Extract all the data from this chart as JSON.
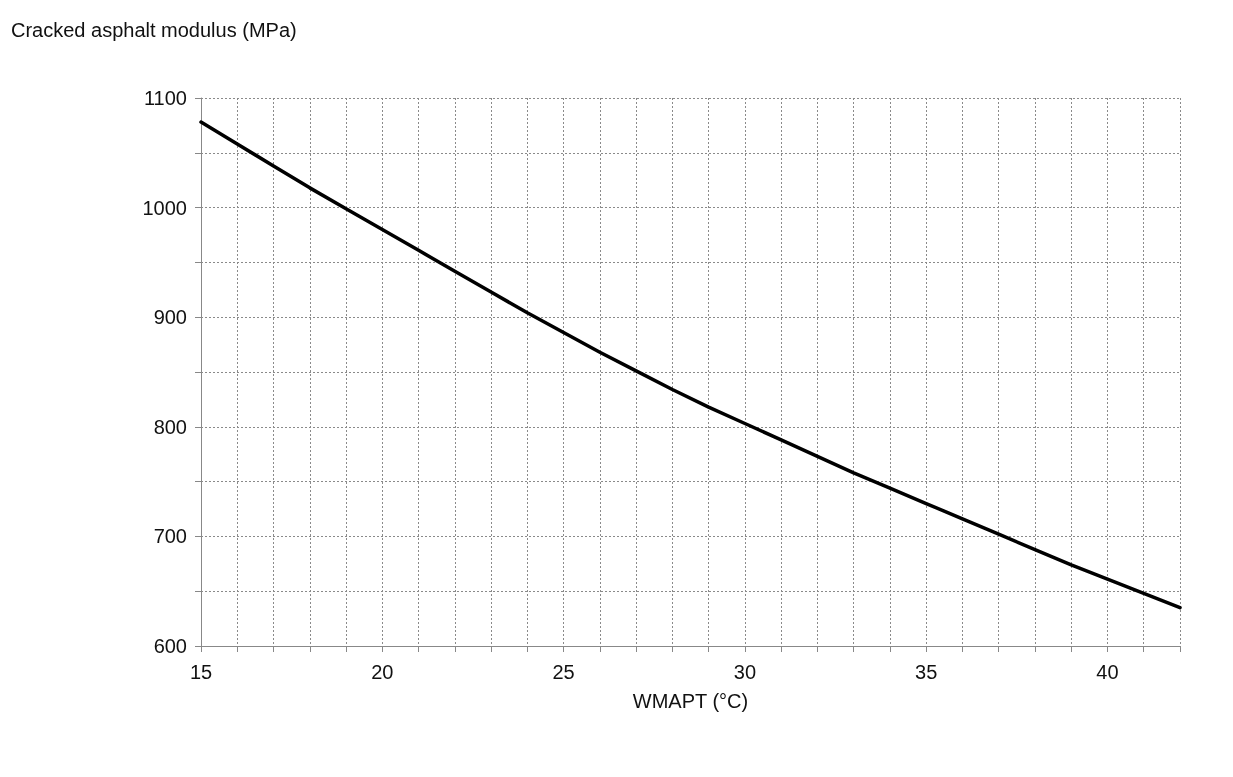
{
  "chart_data": {
    "type": "line",
    "xlabel": "WMAPT (°C)",
    "ylabel": "Cracked asphalt modulus (MPa)",
    "x": [
      15,
      16,
      17,
      18,
      19,
      20,
      21,
      22,
      23,
      24,
      25,
      26,
      27,
      28,
      29,
      30,
      31,
      32,
      33,
      34,
      35,
      36,
      37,
      38,
      39,
      40,
      41,
      42
    ],
    "series": [
      {
        "color": "#000000",
        "values": [
          1078,
          1058,
          1038,
          1018,
          999,
          980,
          961,
          942,
          923,
          904,
          886,
          868,
          851,
          834,
          818,
          803,
          788,
          773,
          758,
          744,
          730,
          716,
          702,
          688,
          674,
          661,
          648,
          635
        ]
      }
    ],
    "xlim": [
      15,
      42
    ],
    "xticks": [
      15,
      {
        "value": 16,
        "label": null
      },
      {
        "value": 17,
        "label": null
      },
      {
        "value": 18,
        "label": null
      },
      {
        "value": 19,
        "label": null
      },
      20,
      {
        "value": 21,
        "label": null
      },
      {
        "value": 22,
        "label": null
      },
      {
        "value": 23,
        "label": null
      },
      {
        "value": 24,
        "label": null
      },
      25,
      {
        "value": 26,
        "label": null
      },
      {
        "value": 27,
        "label": null
      },
      {
        "value": 28,
        "label": null
      },
      {
        "value": 29,
        "label": null
      },
      30,
      {
        "value": 31,
        "label": null
      },
      {
        "value": 32,
        "label": null
      },
      {
        "value": 33,
        "label": null
      },
      {
        "value": 34,
        "label": null
      },
      35,
      {
        "value": 36,
        "label": null
      },
      {
        "value": 37,
        "label": null
      },
      {
        "value": 38,
        "label": null
      },
      {
        "value": 39,
        "label": null
      },
      40,
      {
        "value": 41,
        "label": null
      },
      {
        "value": 42,
        "label": null
      }
    ],
    "ylim": [
      600,
      1100
    ],
    "yticks": [
      600,
      {
        "value": 650,
        "label": null
      },
      700,
      {
        "value": 750,
        "label": null
      },
      800,
      {
        "value": 850,
        "label": null
      },
      900,
      {
        "value": 950,
        "label": null
      },
      1000,
      {
        "value": 1050,
        "label": null
      },
      1100
    ],
    "grid": true,
    "marker": "none",
    "line_style": "solid"
  }
}
